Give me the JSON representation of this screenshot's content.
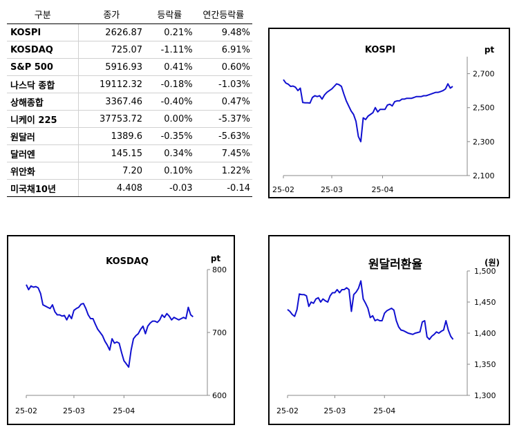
{
  "table": {
    "headers": [
      "구분",
      "종가",
      "등락률",
      "연간등락률"
    ],
    "rows": [
      {
        "name": "KOSPI",
        "close": "2626.87",
        "change": "0.21%",
        "ytd": "9.48%"
      },
      {
        "name": "KOSDAQ",
        "close": "725.07",
        "change": "-1.11%",
        "ytd": "6.91%"
      },
      {
        "name": "S&P 500",
        "close": "5916.93",
        "change": "0.41%",
        "ytd": "0.60%"
      },
      {
        "name": "나스닥 종합",
        "close": "19112.32",
        "change": "-0.18%",
        "ytd": "-1.03%"
      },
      {
        "name": "상해종합",
        "close": "3367.46",
        "change": "-0.40%",
        "ytd": "0.47%"
      },
      {
        "name": "니케이 225",
        "close": "37753.72",
        "change": "0.00%",
        "ytd": "-5.37%"
      },
      {
        "name": "원달러",
        "close": "1389.6",
        "change": "-0.35%",
        "ytd": "-5.63%"
      },
      {
        "name": "달러엔",
        "close": "145.15",
        "change": "0.34%",
        "ytd": "7.45%"
      },
      {
        "name": "위안화",
        "close": "7.20",
        "change": "0.10%",
        "ytd": "1.22%"
      },
      {
        "name": "미국채10년",
        "close": "4.408",
        "change": "-0.03",
        "ytd": "-0.14"
      }
    ]
  },
  "chart_data": [
    {
      "id": "kospi",
      "type": "line",
      "title": "KOSPI",
      "unit": "pt",
      "color": "#1010d0",
      "ylim": [
        2100,
        2800
      ],
      "yticks": [
        2100,
        2300,
        2500,
        2700
      ],
      "ytick_labels": [
        "2,100",
        "2,300",
        "2,500",
        "2,700"
      ],
      "xlim": [
        0,
        76
      ],
      "xticks": [
        {
          "x": 0,
          "label": "25-02"
        },
        {
          "x": 20,
          "label": "25-03"
        },
        {
          "x": 41,
          "label": "25-04"
        }
      ],
      "x": [
        0,
        1,
        2,
        3,
        4,
        5,
        6,
        7,
        8,
        9,
        10,
        11,
        12,
        13,
        14,
        15,
        16,
        17,
        18,
        19,
        20,
        21,
        22,
        23,
        24,
        25,
        26,
        27,
        28,
        29,
        30,
        31,
        32,
        33,
        34,
        35,
        36,
        37,
        38,
        39,
        40,
        41,
        42,
        43,
        44,
        45,
        46,
        47,
        48,
        49,
        50,
        51,
        52,
        53,
        54,
        55,
        56,
        57,
        58,
        59,
        60,
        61,
        62,
        63,
        64,
        65,
        66,
        67,
        68,
        69,
        70
      ],
      "y": [
        2665,
        2645,
        2638,
        2625,
        2627,
        2620,
        2600,
        2615,
        2530,
        2528,
        2528,
        2527,
        2560,
        2570,
        2565,
        2570,
        2550,
        2575,
        2590,
        2600,
        2610,
        2625,
        2640,
        2635,
        2625,
        2580,
        2540,
        2510,
        2480,
        2460,
        2420,
        2330,
        2300,
        2440,
        2430,
        2450,
        2460,
        2470,
        2500,
        2475,
        2490,
        2490,
        2490,
        2515,
        2520,
        2510,
        2535,
        2540,
        2540,
        2550,
        2550,
        2555,
        2555,
        2555,
        2560,
        2565,
        2565,
        2565,
        2570,
        2570,
        2575,
        2580,
        2585,
        2590,
        2590,
        2595,
        2600,
        2610,
        2640,
        2615,
        2625
      ]
    },
    {
      "id": "kosdaq",
      "type": "line",
      "title": "KOSDAQ",
      "unit": "pt",
      "color": "#1010d0",
      "ylim": [
        600,
        800
      ],
      "yticks": [
        600,
        700,
        800
      ],
      "ytick_labels": [
        "600",
        "700",
        "800"
      ],
      "xlim": [
        0,
        76
      ],
      "xticks": [
        {
          "x": 0,
          "label": "25-02"
        },
        {
          "x": 20,
          "label": "25-03"
        },
        {
          "x": 41,
          "label": "25-04"
        }
      ],
      "x": [
        0,
        1,
        2,
        3,
        4,
        5,
        6,
        7,
        8,
        9,
        10,
        11,
        12,
        13,
        14,
        15,
        16,
        17,
        18,
        19,
        20,
        21,
        22,
        23,
        24,
        25,
        26,
        27,
        28,
        29,
        30,
        31,
        32,
        33,
        34,
        35,
        36,
        37,
        38,
        39,
        40,
        41,
        42,
        43,
        44,
        45,
        46,
        47,
        48,
        49,
        50,
        51,
        52,
        53,
        54,
        55,
        56,
        57,
        58,
        59,
        60,
        61,
        62,
        63,
        64,
        65,
        66,
        67,
        68,
        69,
        70
      ],
      "y": [
        776,
        768,
        774,
        772,
        773,
        771,
        762,
        744,
        742,
        740,
        738,
        744,
        733,
        728,
        728,
        726,
        727,
        720,
        728,
        722,
        735,
        738,
        740,
        745,
        746,
        738,
        728,
        722,
        722,
        713,
        705,
        700,
        695,
        686,
        680,
        672,
        690,
        683,
        685,
        683,
        668,
        655,
        650,
        645,
        672,
        690,
        695,
        698,
        705,
        710,
        698,
        710,
        715,
        718,
        718,
        716,
        720,
        728,
        724,
        730,
        726,
        720,
        724,
        722,
        720,
        722,
        724,
        722,
        740,
        728,
        725
      ]
    },
    {
      "id": "usdkrw",
      "type": "line",
      "title": "원달러환율",
      "unit": "(원)",
      "color": "#1010d0",
      "ylim": [
        1300,
        1500
      ],
      "yticks": [
        1300,
        1350,
        1400,
        1450,
        1500
      ],
      "ytick_labels": [
        "1,300",
        "1,350",
        "1,400",
        "1,450",
        "1,500"
      ],
      "xlim": [
        0,
        76
      ],
      "xticks": [
        {
          "x": 0,
          "label": "25-02"
        },
        {
          "x": 20,
          "label": "25-03"
        },
        {
          "x": 41,
          "label": "25-04"
        }
      ],
      "x": [
        0,
        1,
        2,
        3,
        4,
        5,
        6,
        7,
        8,
        9,
        10,
        11,
        12,
        13,
        14,
        15,
        16,
        17,
        18,
        19,
        20,
        21,
        22,
        23,
        24,
        25,
        26,
        27,
        28,
        29,
        30,
        31,
        32,
        33,
        34,
        35,
        36,
        37,
        38,
        39,
        40,
        41,
        42,
        43,
        44,
        45,
        46,
        47,
        48,
        49,
        50,
        51,
        52,
        53,
        54,
        55,
        56,
        57,
        58,
        59,
        60,
        61,
        62,
        63,
        64,
        65,
        66,
        67,
        68,
        69,
        70
      ],
      "y": [
        1438,
        1435,
        1430,
        1427,
        1438,
        1463,
        1462,
        1462,
        1460,
        1443,
        1450,
        1448,
        1455,
        1457,
        1450,
        1455,
        1452,
        1450,
        1460,
        1465,
        1465,
        1470,
        1465,
        1470,
        1470,
        1473,
        1470,
        1435,
        1462,
        1466,
        1472,
        1484,
        1455,
        1448,
        1440,
        1425,
        1428,
        1420,
        1422,
        1420,
        1420,
        1432,
        1436,
        1438,
        1440,
        1437,
        1420,
        1410,
        1405,
        1404,
        1402,
        1400,
        1399,
        1398,
        1400,
        1401,
        1402,
        1418,
        1420,
        1394,
        1390,
        1395,
        1398,
        1402,
        1400,
        1403,
        1405,
        1420,
        1405,
        1395,
        1390
      ]
    }
  ]
}
